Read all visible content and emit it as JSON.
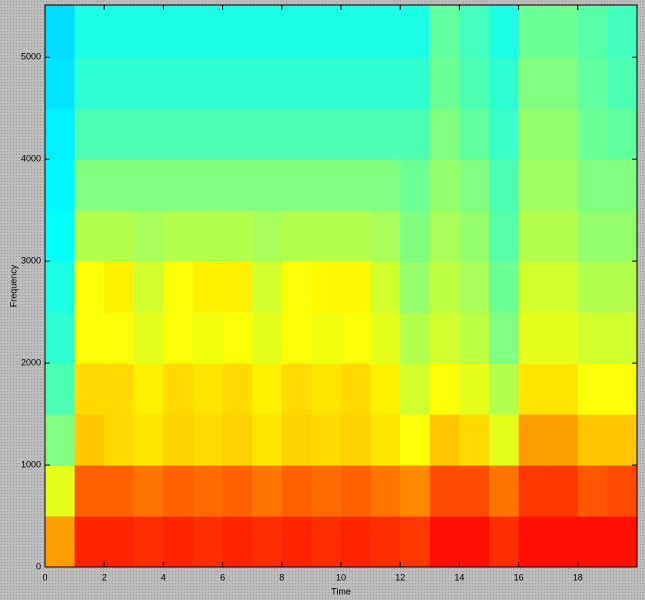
{
  "chart_data": {
    "type": "spectrogram",
    "xlabel": "Time",
    "ylabel": "Frequency",
    "xlim": [
      0,
      20
    ],
    "ylim": [
      0,
      5512.5
    ],
    "xticks": [
      0,
      2,
      4,
      6,
      8,
      10,
      12,
      14,
      16,
      18
    ],
    "yticks": [
      0,
      1000,
      2000,
      3000,
      4000,
      5000
    ],
    "colormap": "jet",
    "zlim": [
      0,
      1
    ],
    "xbins": [
      0,
      1,
      2,
      3,
      4,
      5,
      6,
      7,
      8,
      9,
      10,
      11,
      12,
      13,
      14,
      15,
      16,
      17,
      18,
      19,
      20
    ],
    "ybins": [
      0,
      500,
      1000,
      1500,
      2000,
      2500,
      3000,
      3500,
      4000,
      4500,
      5000,
      5512.5
    ],
    "z": [
      [
        0.72,
        0.84,
        0.84,
        0.83,
        0.84,
        0.83,
        0.84,
        0.83,
        0.84,
        0.83,
        0.84,
        0.83,
        0.82,
        0.86,
        0.86,
        0.83,
        0.86,
        0.86,
        0.86,
        0.86
      ],
      [
        0.6,
        0.78,
        0.78,
        0.76,
        0.78,
        0.77,
        0.78,
        0.76,
        0.78,
        0.77,
        0.78,
        0.76,
        0.74,
        0.8,
        0.8,
        0.76,
        0.82,
        0.82,
        0.79,
        0.8
      ],
      [
        0.5,
        0.68,
        0.66,
        0.65,
        0.67,
        0.66,
        0.67,
        0.65,
        0.67,
        0.66,
        0.67,
        0.65,
        0.62,
        0.68,
        0.66,
        0.6,
        0.72,
        0.72,
        0.68,
        0.68
      ],
      [
        0.45,
        0.66,
        0.66,
        0.64,
        0.66,
        0.65,
        0.66,
        0.64,
        0.66,
        0.65,
        0.66,
        0.64,
        0.58,
        0.62,
        0.6,
        0.55,
        0.65,
        0.65,
        0.62,
        0.62
      ],
      [
        0.42,
        0.62,
        0.62,
        0.6,
        0.62,
        0.61,
        0.62,
        0.6,
        0.62,
        0.61,
        0.62,
        0.6,
        0.55,
        0.58,
        0.56,
        0.5,
        0.6,
        0.6,
        0.58,
        0.58
      ],
      [
        0.4,
        0.62,
        0.64,
        0.58,
        0.62,
        0.64,
        0.64,
        0.58,
        0.62,
        0.63,
        0.63,
        0.58,
        0.52,
        0.56,
        0.54,
        0.48,
        0.58,
        0.58,
        0.55,
        0.55
      ],
      [
        0.38,
        0.55,
        0.55,
        0.54,
        0.55,
        0.55,
        0.55,
        0.54,
        0.55,
        0.55,
        0.55,
        0.54,
        0.5,
        0.54,
        0.52,
        0.46,
        0.55,
        0.55,
        0.52,
        0.52
      ],
      [
        0.37,
        0.5,
        0.5,
        0.5,
        0.5,
        0.5,
        0.5,
        0.5,
        0.5,
        0.5,
        0.5,
        0.5,
        0.48,
        0.52,
        0.5,
        0.45,
        0.53,
        0.53,
        0.5,
        0.5
      ],
      [
        0.36,
        0.45,
        0.45,
        0.45,
        0.45,
        0.45,
        0.45,
        0.45,
        0.45,
        0.45,
        0.45,
        0.45,
        0.45,
        0.5,
        0.47,
        0.43,
        0.52,
        0.52,
        0.48,
        0.47
      ],
      [
        0.35,
        0.42,
        0.42,
        0.42,
        0.42,
        0.42,
        0.42,
        0.42,
        0.42,
        0.42,
        0.42,
        0.42,
        0.42,
        0.48,
        0.45,
        0.42,
        0.5,
        0.5,
        0.47,
        0.45
      ],
      [
        0.34,
        0.4,
        0.4,
        0.4,
        0.4,
        0.4,
        0.4,
        0.4,
        0.4,
        0.4,
        0.4,
        0.4,
        0.4,
        0.47,
        0.44,
        0.4,
        0.48,
        0.48,
        0.46,
        0.44
      ]
    ]
  }
}
